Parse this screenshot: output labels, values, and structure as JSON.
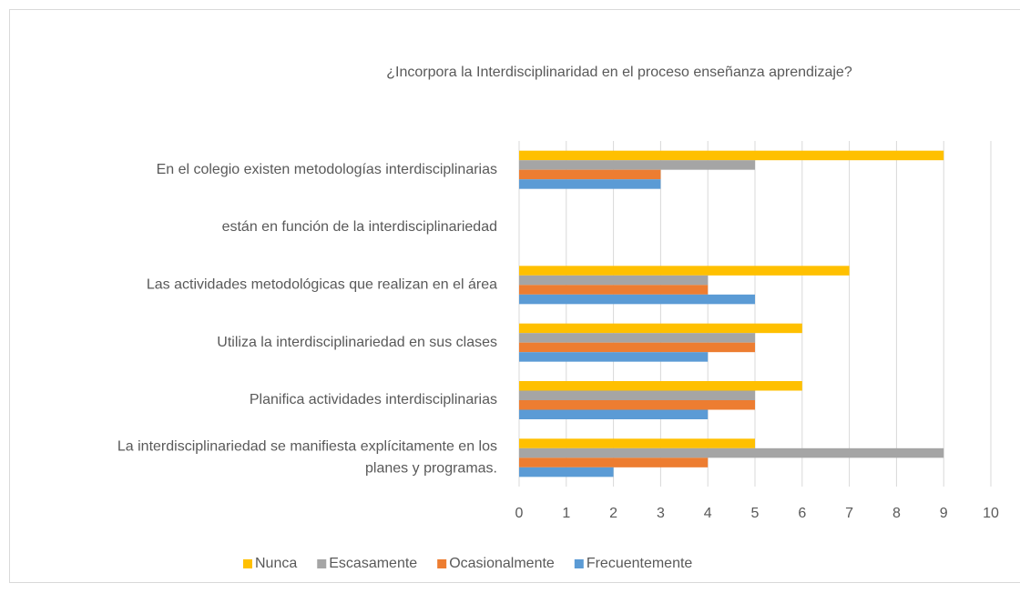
{
  "chart_data": {
    "type": "bar",
    "orientation": "horizontal",
    "title": "¿Incorpora la Interdisciplinaridad en el proceso enseñanza aprendizaje?",
    "categories": [
      "En el colegio existen  metodologías interdisciplinarias",
      "están en función de la interdisciplinariedad",
      "Las actividades metodológicas que realizan en el área",
      "Utiliza la interdisciplinariedad en sus clases",
      "Planifica actividades interdisciplinarias",
      "La interdisciplinariedad se manifiesta explícitamente en los planes y programas."
    ],
    "series": [
      {
        "name": "Nunca",
        "color": "#FFC000",
        "values": [
          9,
          null,
          7,
          6,
          6,
          5
        ]
      },
      {
        "name": "Escasamente",
        "color": "#A5A5A5",
        "values": [
          5,
          null,
          4,
          5,
          5,
          9
        ]
      },
      {
        "name": "Ocasionalmente",
        "color": "#ED7D31",
        "values": [
          3,
          null,
          4,
          5,
          5,
          4
        ]
      },
      {
        "name": "Frecuentemente",
        "color": "#5B9BD5",
        "values": [
          3,
          null,
          5,
          4,
          4,
          2
        ]
      }
    ],
    "xlim": [
      0,
      10
    ],
    "xticks": [
      0,
      1,
      2,
      3,
      4,
      5,
      6,
      7,
      8,
      9,
      10
    ],
    "grid": true,
    "legend": "bottom"
  }
}
